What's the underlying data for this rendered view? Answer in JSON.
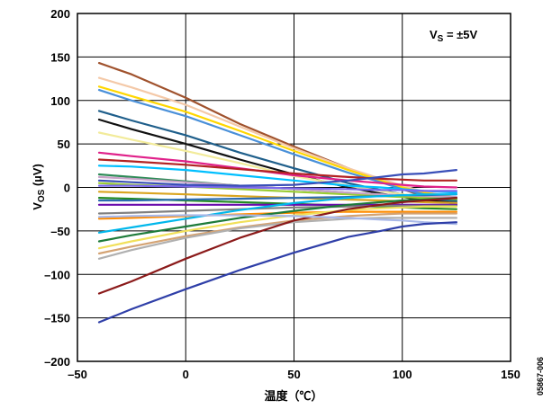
{
  "chart_data": {
    "type": "line",
    "xlabel": "温度（℃）",
    "ylabel_main": "V",
    "ylabel_sub": "OS",
    "ylabel_unit": " (µV)",
    "annotation_main": "V",
    "annotation_sub": "S",
    "annotation_rest": " = ±5V",
    "figure_id": "05867-006",
    "xlim": [
      -50,
      150
    ],
    "ylim": [
      -200,
      200
    ],
    "xticks": [
      -50,
      0,
      50,
      100,
      150
    ],
    "yticks": [
      -200,
      -150,
      -100,
      -50,
      0,
      50,
      100,
      150,
      200
    ],
    "xtick_labels": [
      "–50",
      "0",
      "50",
      "100",
      "150"
    ],
    "ytick_labels": [
      "–200",
      "–150",
      "–100",
      "–50",
      "0",
      "50",
      "100",
      "150",
      "200"
    ],
    "grid": true,
    "x": [
      -40,
      -25,
      0,
      25,
      50,
      75,
      90,
      100,
      110,
      125
    ],
    "series": [
      {
        "color": "#a0522d",
        "values": [
          143,
          130,
          103,
          73,
          47,
          22,
          8,
          -2,
          -10,
          -20
        ]
      },
      {
        "color": "#f4c9a8",
        "values": [
          126,
          115,
          95,
          70,
          45,
          22,
          10,
          2,
          -5,
          -12
        ]
      },
      {
        "color": "#ffd700",
        "values": [
          116,
          105,
          87,
          65,
          42,
          20,
          8,
          0,
          -6,
          -12
        ]
      },
      {
        "color": "#4a90d9",
        "values": [
          112,
          100,
          82,
          60,
          38,
          17,
          6,
          -2,
          -8,
          -14
        ]
      },
      {
        "color": "#1f5f8b",
        "values": [
          88,
          77,
          60,
          40,
          22,
          5,
          -3,
          -8,
          -12,
          -16
        ]
      },
      {
        "color": "#111111",
        "values": [
          78,
          67,
          50,
          32,
          15,
          0,
          -7,
          -11,
          -15,
          -18
        ]
      },
      {
        "color": "#f2eb9a",
        "values": [
          63,
          55,
          42,
          28,
          13,
          2,
          -4,
          -8,
          -11,
          -14
        ]
      },
      {
        "color": "#e0218a",
        "values": [
          40,
          36,
          30,
          22,
          14,
          8,
          5,
          3,
          1,
          0
        ]
      },
      {
        "color": "#b22222",
        "values": [
          32,
          30,
          26,
          21,
          16,
          12,
          10,
          9,
          8,
          8
        ]
      },
      {
        "color": "#00bfff",
        "values": [
          25,
          24,
          20,
          14,
          8,
          2,
          0,
          -2,
          -4,
          -6
        ]
      },
      {
        "color": "#2e8b57",
        "values": [
          15,
          12,
          7,
          2,
          -2,
          -6,
          -8,
          -10,
          -12,
          -14
        ]
      },
      {
        "color": "#9acd32",
        "values": [
          5,
          3,
          1,
          -2,
          -5,
          -8,
          -10,
          -11,
          -12,
          -13
        ]
      },
      {
        "color": "#c8a2c8",
        "values": [
          12,
          10,
          6,
          2,
          -2,
          -6,
          -8,
          -9,
          -10,
          -11
        ]
      },
      {
        "color": "#7b68ee",
        "values": [
          2,
          2,
          1,
          0,
          -1,
          -2,
          -3,
          -3,
          -4,
          -4
        ]
      },
      {
        "color": "#daa520",
        "values": [
          -5,
          -6,
          -8,
          -10,
          -12,
          -14,
          -15,
          -16,
          -17,
          -18
        ]
      },
      {
        "color": "#228b22",
        "values": [
          -12,
          -13,
          -15,
          -17,
          -19,
          -21,
          -22,
          -23,
          -24,
          -25
        ]
      },
      {
        "color": "#6a0dad",
        "values": [
          -20,
          -20,
          -20,
          -20,
          -20,
          -20,
          -20,
          -20,
          -20,
          -20
        ]
      },
      {
        "color": "#808080",
        "values": [
          -30,
          -29,
          -27,
          -25,
          -23,
          -22,
          -21,
          -21,
          -21,
          -21
        ]
      },
      {
        "color": "#ff8c00",
        "values": [
          -36,
          -35,
          -33,
          -31,
          -29,
          -28,
          -28,
          -28,
          -28,
          -28
        ]
      },
      {
        "color": "#2b6cb0",
        "values": [
          -15,
          -15,
          -14,
          -13,
          -12,
          -11,
          -10,
          -9,
          -9,
          -8
        ]
      },
      {
        "color": "#00b7eb",
        "values": [
          -52,
          -46,
          -36,
          -26,
          -18,
          -12,
          -10,
          -9,
          -8,
          -8
        ]
      },
      {
        "color": "#1e7b3a",
        "values": [
          -62,
          -55,
          -45,
          -35,
          -27,
          -20,
          -17,
          -15,
          -14,
          -12
        ]
      },
      {
        "color": "#f1e05a",
        "values": [
          -70,
          -62,
          -50,
          -40,
          -32,
          -26,
          -24,
          -23,
          -22,
          -22
        ]
      },
      {
        "color": "#d4a373",
        "values": [
          -76,
          -68,
          -56,
          -46,
          -38,
          -33,
          -31,
          -30,
          -30,
          -30
        ]
      },
      {
        "color": "#b0b0b0",
        "values": [
          -82,
          -72,
          -58,
          -47,
          -40,
          -36,
          -35,
          -35,
          -35,
          -35
        ]
      },
      {
        "color": "#8b1a1a",
        "values": [
          -122,
          -108,
          -82,
          -58,
          -38,
          -25,
          -20,
          -17,
          -15,
          -12
        ]
      },
      {
        "color": "#a9b8e8",
        "values": [
          -34,
          -33,
          -32,
          -32,
          -33,
          -35,
          -37,
          -38,
          -40,
          -42
        ]
      },
      {
        "color": "#2f3fa8",
        "values": [
          -155,
          -140,
          -117,
          -95,
          -75,
          -57,
          -50,
          -45,
          -42,
          -40
        ]
      },
      {
        "color": "#3a4fb8",
        "values": [
          8,
          6,
          3,
          2,
          3,
          8,
          12,
          15,
          16,
          20
        ]
      }
    ]
  }
}
